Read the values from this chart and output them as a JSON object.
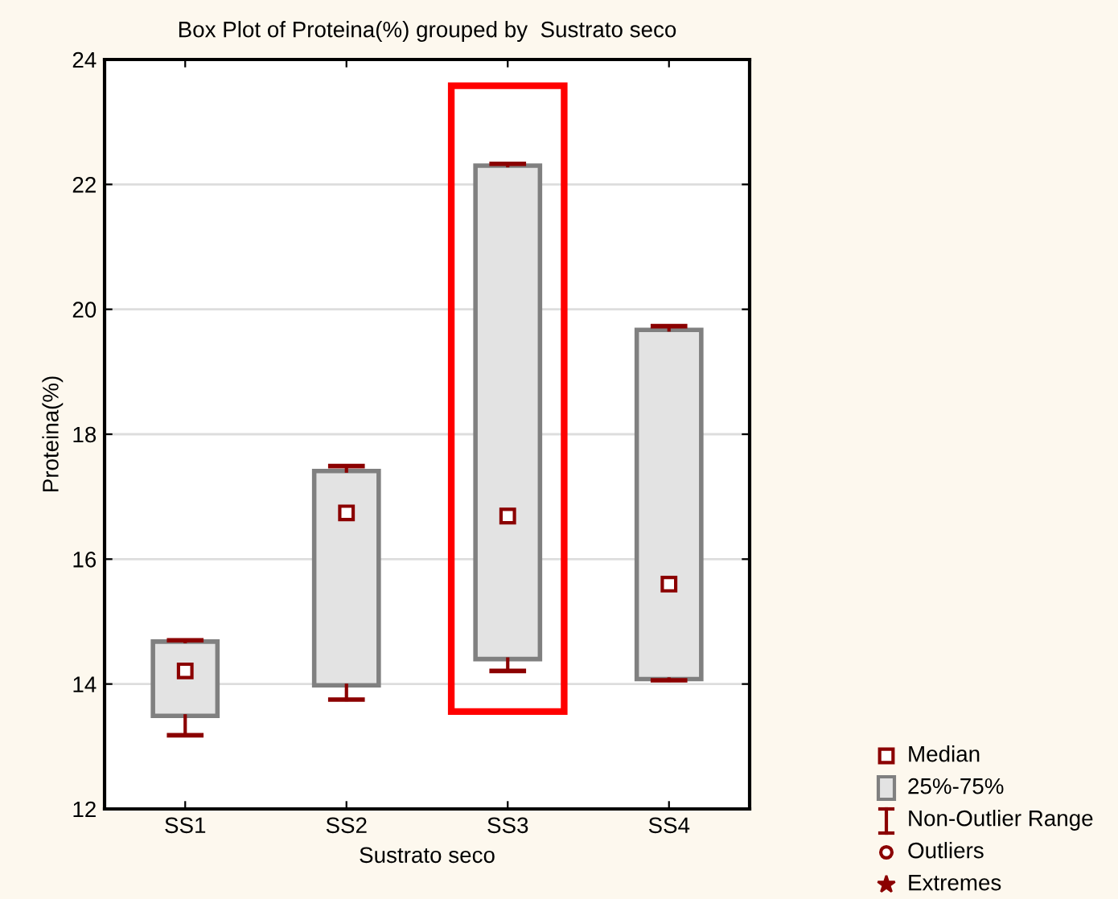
{
  "chart_data": {
    "type": "box",
    "title": "Box Plot of Proteina(%) grouped by  Sustrato seco",
    "xlabel": "Sustrato seco",
    "ylabel": "Proteina(%)",
    "categories": [
      "SS1",
      "SS2",
      "SS3",
      "SS4"
    ],
    "boxes": [
      {
        "low": 13.18,
        "q1": 13.49,
        "median": 14.21,
        "q3": 14.68,
        "high": 14.7
      },
      {
        "low": 13.75,
        "q1": 13.98,
        "median": 16.74,
        "q3": 17.41,
        "high": 17.49
      },
      {
        "low": 14.21,
        "q1": 14.4,
        "median": 16.69,
        "q3": 22.3,
        "high": 22.33
      },
      {
        "low": 14.06,
        "q1": 14.08,
        "median": 15.6,
        "q3": 19.67,
        "high": 19.73
      }
    ],
    "color": "#e3e3e3",
    "ylim": [
      12,
      24
    ],
    "yticks": [
      12,
      14,
      16,
      18,
      20,
      22,
      24
    ],
    "grid": "y",
    "annotations": [
      "Median",
      "25%-75%",
      "Non-Outlier Range",
      "Outliers",
      "Extremes"
    ]
  }
}
